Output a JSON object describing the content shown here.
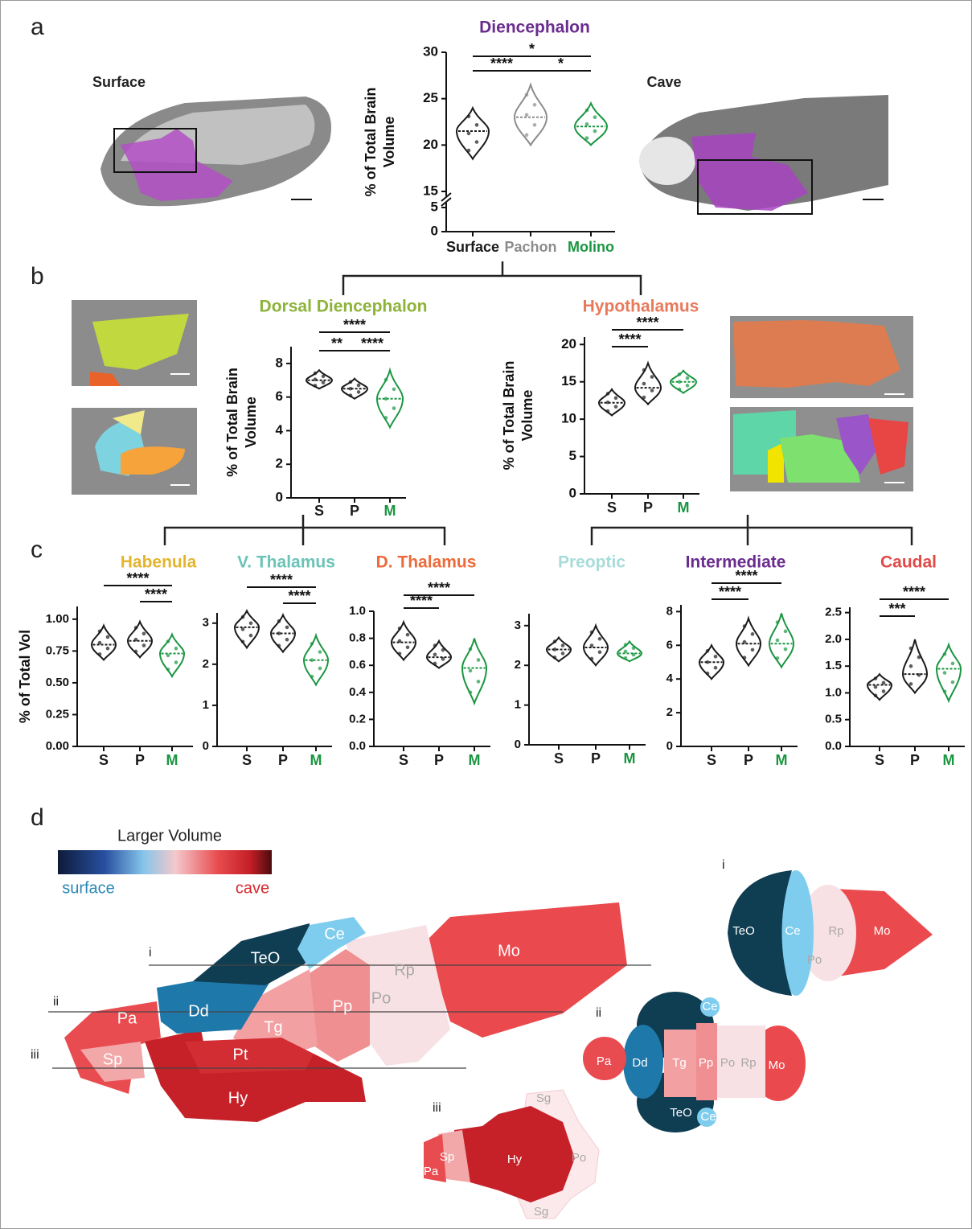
{
  "panel_labels": [
    "a",
    "b",
    "c",
    "d"
  ],
  "image_labels": {
    "surface": "Surface",
    "cave": "Cave"
  },
  "chart_data": [
    {
      "type": "violin",
      "title": "Diencephalon",
      "title_color": "#6a2c8e",
      "ylabel": [
        "% of Total Brain",
        "Volume"
      ],
      "categories": [
        "Surface",
        "Pachon",
        "Molino"
      ],
      "category_colors": [
        "#1a1a1a",
        "#8c8c8c",
        "#1a9641"
      ],
      "values": [
        21.5,
        23,
        22
      ],
      "lows": [
        18.5,
        20,
        20
      ],
      "highs": [
        24,
        26.5,
        24.5
      ],
      "ylim": [
        0,
        30
      ],
      "yticks": [
        0,
        5,
        15,
        20,
        25,
        30
      ],
      "axis_break": [
        5,
        15
      ],
      "comparisons": [
        {
          "label": "*",
          "between": [
            "Surface",
            "Molino"
          ]
        },
        {
          "label": "****",
          "between": [
            "Surface",
            "Pachon"
          ]
        },
        {
          "label": "*",
          "between": [
            "Pachon",
            "Molino"
          ]
        }
      ]
    },
    {
      "type": "violin",
      "title": "Dorsal Diencephalon",
      "title_color": "#8db33a",
      "ylabel": [
        "% of Total Brain",
        "Volume"
      ],
      "categories": [
        "S",
        "P",
        "M"
      ],
      "category_colors": [
        "#1a1a1a",
        "#1a1a1a",
        "#1a9641"
      ],
      "values": [
        7.0,
        6.5,
        5.9
      ],
      "lows": [
        6.5,
        5.9,
        4.2
      ],
      "highs": [
        7.6,
        7.1,
        7.6
      ],
      "ylim": [
        0,
        9
      ],
      "yticks": [
        0,
        2,
        4,
        6,
        8
      ],
      "comparisons": [
        {
          "label": "****",
          "between": [
            "S",
            "M"
          ]
        },
        {
          "label": "**",
          "between": [
            "S",
            "P"
          ]
        },
        {
          "label": "****",
          "between": [
            "P",
            "M"
          ]
        }
      ]
    },
    {
      "type": "violin",
      "title": "Hypothalamus",
      "title_color": "#e8795a",
      "ylabel": [
        "% of Total Brain",
        "Volume"
      ],
      "categories": [
        "S",
        "P",
        "M"
      ],
      "category_colors": [
        "#1a1a1a",
        "#1a1a1a",
        "#1a9641"
      ],
      "values": [
        12.2,
        14.2,
        15
      ],
      "lows": [
        10.5,
        12,
        13.5
      ],
      "highs": [
        14,
        17.5,
        16.5
      ],
      "ylim": [
        0,
        21
      ],
      "yticks": [
        0,
        5,
        10,
        15,
        20
      ],
      "comparisons": [
        {
          "label": "****",
          "between": [
            "S",
            "M"
          ]
        },
        {
          "label": "****",
          "between": [
            "S",
            "P"
          ]
        }
      ]
    },
    {
      "type": "violin",
      "title": "Habenula",
      "title_color": "#e3b52d",
      "ylabel": [
        "% of Total Vol"
      ],
      "categories": [
        "S",
        "P",
        "M"
      ],
      "category_colors": [
        "#1a1a1a",
        "#1a1a1a",
        "#1a9641"
      ],
      "values": [
        0.8,
        0.83,
        0.73
      ],
      "lows": [
        0.68,
        0.7,
        0.55
      ],
      "highs": [
        0.95,
        0.98,
        0.88
      ],
      "ylim": [
        0,
        1.1
      ],
      "yticks": [
        {
          "value": 0,
          "label": "0.00"
        },
        0.25,
        {
          "value": 0.5,
          "label": "0.50"
        },
        0.75,
        {
          "value": 1,
          "label": "1.00"
        }
      ],
      "comparisons": [
        {
          "label": "****",
          "between": [
            "S",
            "M"
          ]
        },
        {
          "label": "****",
          "between": [
            "P",
            "M"
          ]
        }
      ]
    },
    {
      "type": "violin",
      "title": "V. Thalamus",
      "title_color": "#6cc3b7",
      "categories": [
        "S",
        "P",
        "M"
      ],
      "category_colors": [
        "#1a1a1a",
        "#1a1a1a",
        "#1a9641"
      ],
      "values": [
        2.9,
        2.75,
        2.1
      ],
      "lows": [
        2.4,
        2.3,
        1.5
      ],
      "highs": [
        3.3,
        3.2,
        2.7
      ],
      "ylim": [
        0,
        3.25
      ],
      "yticks": [
        0,
        1,
        2,
        3
      ],
      "comparisons": [
        {
          "label": "****",
          "between": [
            "S",
            "M"
          ]
        },
        {
          "label": "****",
          "between": [
            "P",
            "M"
          ]
        }
      ]
    },
    {
      "type": "violin",
      "title": "D. Thalamus",
      "title_color": "#ec6b3a",
      "categories": [
        "S",
        "P",
        "M"
      ],
      "category_colors": [
        "#1a1a1a",
        "#1a1a1a",
        "#1a9641"
      ],
      "values": [
        0.77,
        0.66,
        0.58
      ],
      "lows": [
        0.64,
        0.58,
        0.32
      ],
      "highs": [
        0.92,
        0.78,
        0.8
      ],
      "ylim": [
        0,
        1
      ],
      "yticks": [
        {
          "value": 0,
          "label": "0.0"
        },
        0.2,
        0.4,
        0.6,
        0.8,
        {
          "value": 1,
          "label": "1.0"
        }
      ],
      "comparisons": [
        {
          "label": "****",
          "between": [
            "S",
            "M"
          ]
        },
        {
          "label": "****",
          "between": [
            "S",
            "P"
          ]
        }
      ]
    },
    {
      "type": "violin",
      "title": "Preoptic",
      "title_color": "#a8dcd9",
      "categories": [
        "S",
        "P",
        "M"
      ],
      "category_colors": [
        "#1a1a1a",
        "#1a1a1a",
        "#1a9641"
      ],
      "values": [
        2.4,
        2.45,
        2.3
      ],
      "lows": [
        2.1,
        2.0,
        2.1
      ],
      "highs": [
        2.7,
        3.0,
        2.6
      ],
      "ylim": [
        0,
        3.3
      ],
      "yticks": [
        0,
        1,
        2,
        3
      ],
      "comparisons": []
    },
    {
      "type": "violin",
      "title": "Intermediate",
      "title_color": "#6a2c8e",
      "categories": [
        "S",
        "P",
        "M"
      ],
      "category_colors": [
        "#1a1a1a",
        "#1a1a1a",
        "#1a9641"
      ],
      "values": [
        5.0,
        6.1,
        6.1
      ],
      "lows": [
        4.0,
        4.8,
        4.7
      ],
      "highs": [
        6.0,
        7.6,
        7.9
      ],
      "ylim": [
        0,
        8.4
      ],
      "yticks": [
        0,
        2,
        4,
        6,
        8
      ],
      "comparisons": [
        {
          "label": "****",
          "between": [
            "S",
            "M"
          ]
        },
        {
          "label": "****",
          "between": [
            "S",
            "P"
          ]
        }
      ]
    },
    {
      "type": "violin",
      "title": "Caudal",
      "title_color": "#e04a47",
      "categories": [
        "S",
        "P",
        "M"
      ],
      "category_colors": [
        "#1a1a1a",
        "#1a1a1a",
        "#1a9641"
      ],
      "values": [
        1.15,
        1.35,
        1.45
      ],
      "lows": [
        0.87,
        1.0,
        0.85
      ],
      "highs": [
        1.35,
        2.0,
        1.9
      ],
      "ylim": [
        0,
        2.6
      ],
      "yticks": [
        {
          "value": 0,
          "label": "0.0"
        },
        0.5,
        {
          "value": 1,
          "label": "1.0"
        },
        1.5,
        {
          "value": 2,
          "label": "2.0"
        },
        2.5
      ],
      "comparisons": [
        {
          "label": "****",
          "between": [
            "S",
            "M"
          ]
        },
        {
          "label": "***",
          "between": [
            "S",
            "P"
          ]
        }
      ]
    }
  ],
  "panel_d": {
    "legend": {
      "title": "Larger Volume",
      "low": "surface",
      "high": "cave"
    },
    "section_lines": [
      "i",
      "ii",
      "iii"
    ],
    "sagittal": [
      "TeO",
      "Ce",
      "Mo",
      "Rp",
      "Po",
      "Pp",
      "Tg",
      "Dd",
      "Pa",
      "Sp",
      "Pt",
      "Hy"
    ],
    "view_i": {
      "label": "i",
      "regions": [
        "TeO",
        "Ce",
        "Rp",
        "Po",
        "Mo"
      ]
    },
    "view_ii": {
      "label": "ii",
      "regions": [
        "Pa",
        "Dd",
        "Tg",
        "Pp",
        "Po",
        "Rp",
        "Mo",
        "Ce",
        "TeO",
        "Ce"
      ]
    },
    "view_iii": {
      "label": "iii",
      "regions": [
        "Sg",
        "Sp",
        "Pa",
        "Hy",
        "Po",
        "Sg"
      ]
    }
  }
}
